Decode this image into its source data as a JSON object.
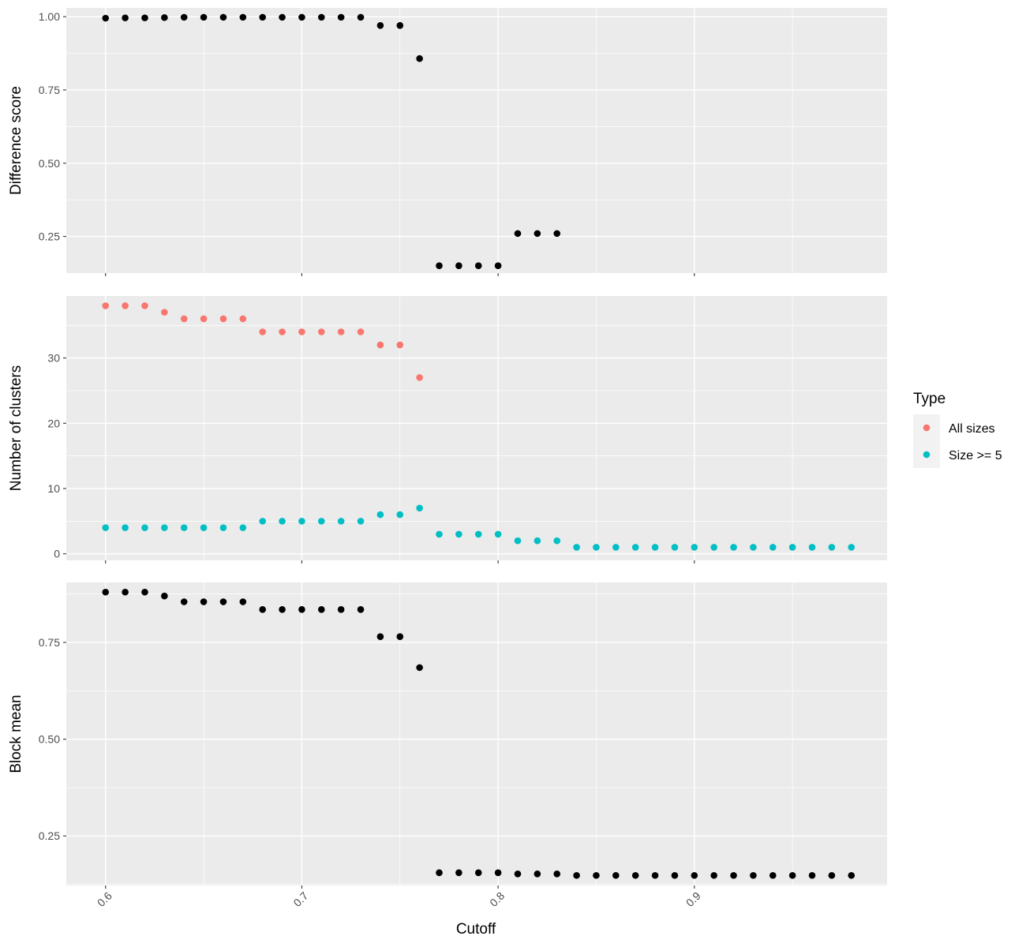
{
  "chart_data": [
    {
      "type": "scatter",
      "panel": "top",
      "ylabel": "Difference score",
      "xlim": [
        0.58,
        0.9982
      ],
      "ylim": [
        0.125,
        1.03
      ],
      "y_ticks": [
        0.25,
        0.5,
        0.75,
        1.0
      ],
      "y_tick_labels": [
        "0.25",
        "0.50",
        "0.75",
        "1.00"
      ],
      "grid": true,
      "series": [
        {
          "color": "#000000",
          "x": [
            0.6,
            0.61,
            0.62,
            0.63,
            0.64,
            0.65,
            0.66,
            0.67,
            0.68,
            0.69,
            0.7,
            0.71,
            0.72,
            0.73,
            0.74,
            0.75,
            0.76,
            0.77,
            0.78,
            0.79,
            0.8,
            0.81,
            0.82,
            0.83
          ],
          "y": [
            0.995,
            0.996,
            0.996,
            0.997,
            0.998,
            0.998,
            0.998,
            0.998,
            0.998,
            0.998,
            0.998,
            0.998,
            0.998,
            0.998,
            0.97,
            0.97,
            0.857,
            0.15,
            0.15,
            0.15,
            0.15,
            0.26,
            0.26,
            0.26
          ]
        }
      ]
    },
    {
      "type": "scatter",
      "panel": "middle",
      "ylabel": "Number of clusters",
      "xlim": [
        0.58,
        0.9982
      ],
      "ylim": [
        -1,
        39.5
      ],
      "y_ticks": [
        0,
        10,
        20,
        30
      ],
      "y_tick_labels": [
        "0",
        "10",
        "20",
        "30"
      ],
      "grid": true,
      "series": [
        {
          "name": "All sizes",
          "color": "#F8766D",
          "x": [
            0.6,
            0.61,
            0.62,
            0.63,
            0.64,
            0.65,
            0.66,
            0.67,
            0.68,
            0.69,
            0.7,
            0.71,
            0.72,
            0.73,
            0.74,
            0.75,
            0.76
          ],
          "y": [
            38,
            38,
            38,
            37,
            36,
            36,
            36,
            36,
            34,
            34,
            34,
            34,
            34,
            34,
            32,
            32,
            27
          ]
        },
        {
          "name": "Size >= 5",
          "color": "#00BFC4",
          "x": [
            0.6,
            0.61,
            0.62,
            0.63,
            0.64,
            0.65,
            0.66,
            0.67,
            0.68,
            0.69,
            0.7,
            0.71,
            0.72,
            0.73,
            0.74,
            0.75,
            0.76,
            0.77,
            0.78,
            0.79,
            0.8,
            0.81,
            0.82,
            0.83,
            0.84,
            0.85,
            0.86,
            0.87,
            0.88,
            0.89,
            0.9,
            0.91,
            0.92,
            0.93,
            0.94,
            0.95,
            0.96,
            0.97,
            0.98
          ],
          "y": [
            4,
            4,
            4,
            4,
            4,
            4,
            4,
            4,
            5,
            5,
            5,
            5,
            5,
            5,
            6,
            6,
            7,
            3,
            3,
            3,
            3,
            2,
            2,
            2,
            1,
            1,
            1,
            1,
            1,
            1,
            1,
            1,
            1,
            1,
            1,
            1,
            1,
            1,
            1
          ]
        }
      ]
    },
    {
      "type": "scatter",
      "panel": "bottom",
      "ylabel": "Block mean",
      "xlabel": "Cutoff",
      "xlim": [
        0.58,
        0.9982
      ],
      "ylim": [
        0.122,
        0.905
      ],
      "x_ticks": [
        0.6,
        0.7,
        0.8,
        0.9
      ],
      "x_tick_labels": [
        "0.6",
        "0.7",
        "0.8",
        "0.9"
      ],
      "y_ticks": [
        0.25,
        0.5,
        0.75
      ],
      "y_tick_labels": [
        "0.25",
        "0.50",
        "0.75"
      ],
      "grid": true,
      "series": [
        {
          "color": "#000000",
          "x": [
            0.6,
            0.61,
            0.62,
            0.63,
            0.64,
            0.65,
            0.66,
            0.67,
            0.68,
            0.69,
            0.7,
            0.71,
            0.72,
            0.73,
            0.74,
            0.75,
            0.76,
            0.77,
            0.78,
            0.79,
            0.8,
            0.81,
            0.82,
            0.83,
            0.84,
            0.85,
            0.86,
            0.87,
            0.88,
            0.89,
            0.9,
            0.91,
            0.92,
            0.93,
            0.94,
            0.95,
            0.96,
            0.97,
            0.98
          ],
          "y": [
            0.88,
            0.88,
            0.88,
            0.87,
            0.855,
            0.855,
            0.855,
            0.855,
            0.835,
            0.835,
            0.835,
            0.835,
            0.835,
            0.835,
            0.765,
            0.765,
            0.685,
            0.155,
            0.155,
            0.155,
            0.155,
            0.152,
            0.152,
            0.152,
            0.148,
            0.148,
            0.148,
            0.148,
            0.148,
            0.148,
            0.148,
            0.148,
            0.148,
            0.148,
            0.148,
            0.148,
            0.148,
            0.148,
            0.148
          ]
        }
      ]
    }
  ],
  "legend": {
    "title": "Type",
    "placement": "right",
    "items": [
      {
        "label": "All sizes",
        "color": "#F8766D"
      },
      {
        "label": "Size >= 5",
        "color": "#00BFC4"
      }
    ]
  }
}
